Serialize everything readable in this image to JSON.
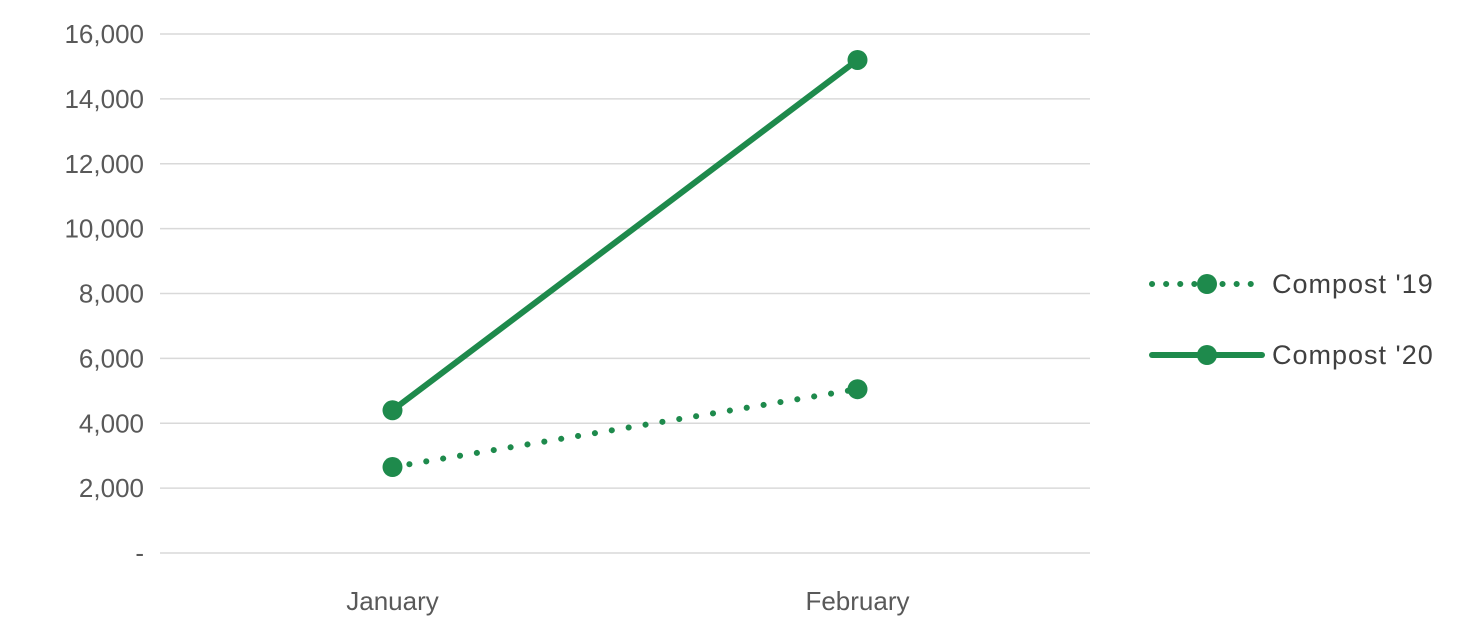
{
  "chart_data": {
    "type": "line",
    "title": "",
    "xlabel": "",
    "ylabel": "",
    "categories": [
      "January",
      "February"
    ],
    "ylim": [
      0,
      16000
    ],
    "yticks": [
      0,
      2000,
      4000,
      6000,
      8000,
      10000,
      12000,
      14000,
      16000
    ],
    "ytick_labels": [
      "-",
      "2,000",
      "4,000",
      "6,000",
      "8,000",
      "10,000",
      "12,000",
      "14,000",
      "16,000"
    ],
    "grid": true,
    "legend_position": "right",
    "series": [
      {
        "name": "Compost '19",
        "values": [
          2650,
          5050
        ],
        "color": "#1e8a4c",
        "line_style": "dotted",
        "marker": "circle"
      },
      {
        "name": "Compost '20",
        "values": [
          4400,
          15200
        ],
        "color": "#1e8a4c",
        "line_style": "solid",
        "marker": "circle"
      }
    ]
  }
}
